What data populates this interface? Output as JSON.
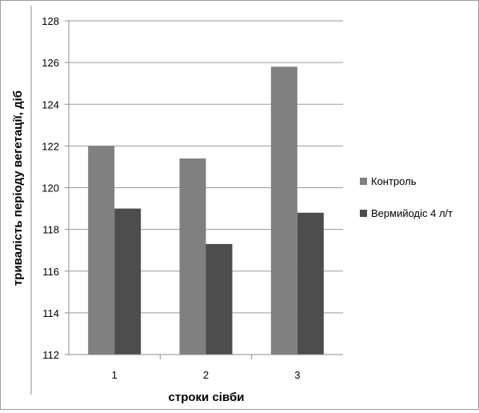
{
  "chart_data": {
    "type": "bar",
    "categories": [
      "1",
      "2",
      "3"
    ],
    "series": [
      {
        "name": "Контроль",
        "values": [
          122.0,
          121.4,
          125.8
        ],
        "color": "#808080"
      },
      {
        "name": "Вермийодіс 4 л/т",
        "values": [
          119.0,
          117.3,
          118.8
        ],
        "color": "#4d4d4d"
      }
    ],
    "title": "",
    "xlabel": "строки сівби",
    "ylabel": "тривалість періоду вегетації, діб",
    "ylim": [
      112,
      128
    ],
    "yticks": [
      112,
      114,
      116,
      118,
      120,
      122,
      124,
      126,
      128
    ],
    "grid": true,
    "legend_position": "right"
  }
}
